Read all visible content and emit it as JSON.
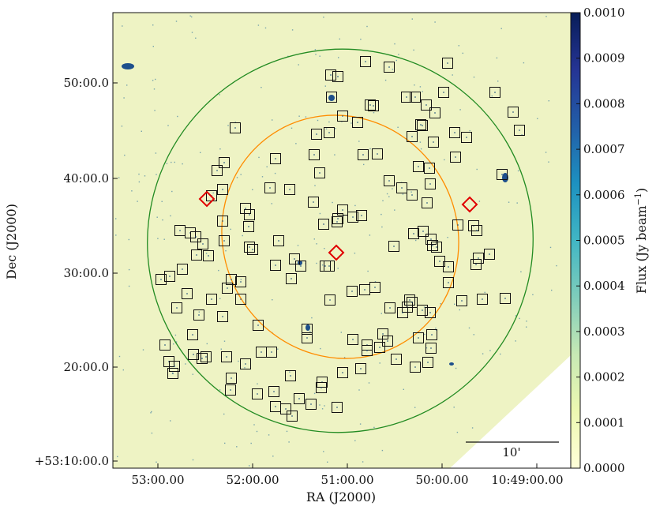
{
  "chart_data": {
    "type": "heatmap",
    "xlabel": "RA (J2000)",
    "ylabel": "Dec (J2000)",
    "x_ticks": [
      "53:00.00",
      "52:00.00",
      "51:00.00",
      "50:00.00",
      "10:49:00.00"
    ],
    "y_ticks": [
      "+53:10:00.0",
      "20:00.0",
      "30:00.0",
      "40:00.0",
      "50:00.0"
    ],
    "colorbar": {
      "label": "Flux (Jy beam",
      "label_exp": "−1",
      "label_close": ")",
      "range": [
        0,
        0.001
      ],
      "ticks": [
        "0.0000",
        "0.0001",
        "0.0002",
        "0.0003",
        "0.0004",
        "0.0005",
        "0.0006",
        "0.0007",
        "0.0008",
        "0.0009",
        "0.0010"
      ],
      "colormap": "YlGnBu",
      "colors": [
        "#ffffd9",
        "#edf8b1",
        "#c7e9b4",
        "#7fcdbb",
        "#41b6c4",
        "#1d91c0",
        "#225ea8",
        "#253494",
        "#081d58"
      ]
    },
    "scalebar_label": "10'",
    "background_color": "#eef3c4",
    "sources_square": [
      [
        463,
        78
      ],
      [
        493,
        85
      ],
      [
        567,
        80
      ],
      [
        419,
        95
      ],
      [
        428,
        97
      ],
      [
        562,
        117
      ],
      [
        627,
        117
      ],
      [
        420,
        123
      ],
      [
        469,
        133
      ],
      [
        473,
        134
      ],
      [
        515,
        123
      ],
      [
        526,
        123
      ],
      [
        540,
        133
      ],
      [
        551,
        143
      ],
      [
        533,
        158
      ],
      [
        535,
        159
      ],
      [
        434,
        147
      ],
      [
        453,
        155
      ],
      [
        298,
        162
      ],
      [
        401,
        170
      ],
      [
        417,
        168
      ],
      [
        576,
        168
      ],
      [
        522,
        173
      ],
      [
        549,
        180
      ],
      [
        591,
        174
      ],
      [
        650,
        142
      ],
      [
        658,
        165
      ],
      [
        349,
        201
      ],
      [
        398,
        196
      ],
      [
        460,
        196
      ],
      [
        478,
        195
      ],
      [
        530,
        211
      ],
      [
        544,
        213
      ],
      [
        577,
        199
      ],
      [
        636,
        221
      ],
      [
        284,
        206
      ],
      [
        275,
        216
      ],
      [
        282,
        240
      ],
      [
        268,
        248
      ],
      [
        342,
        238
      ],
      [
        367,
        240
      ],
      [
        405,
        219
      ],
      [
        397,
        256
      ],
      [
        434,
        266
      ],
      [
        493,
        229
      ],
      [
        509,
        238
      ],
      [
        545,
        233
      ],
      [
        541,
        257
      ],
      [
        522,
        247
      ],
      [
        311,
        264
      ],
      [
        316,
        272
      ],
      [
        428,
        277
      ],
      [
        447,
        275
      ],
      [
        458,
        273
      ],
      [
        427,
        281
      ],
      [
        410,
        284
      ],
      [
        282,
        280
      ],
      [
        228,
        292
      ],
      [
        241,
        295
      ],
      [
        248,
        300
      ],
      [
        315,
        287
      ],
      [
        316,
        313
      ],
      [
        257,
        309
      ],
      [
        284,
        305
      ],
      [
        320,
        316
      ],
      [
        249,
        323
      ],
      [
        264,
        324
      ],
      [
        353,
        305
      ],
      [
        349,
        336
      ],
      [
        373,
        328
      ],
      [
        381,
        337
      ],
      [
        369,
        353
      ],
      [
        417,
        337
      ],
      [
        412,
        337
      ],
      [
        499,
        312
      ],
      [
        524,
        296
      ],
      [
        536,
        293
      ],
      [
        546,
        303
      ],
      [
        548,
        311
      ],
      [
        553,
        313
      ],
      [
        600,
        286
      ],
      [
        604,
        292
      ],
      [
        580,
        285
      ],
      [
        606,
        327
      ],
      [
        620,
        322
      ],
      [
        568,
        338
      ],
      [
        603,
        335
      ],
      [
        204,
        354
      ],
      [
        215,
        350
      ],
      [
        231,
        341
      ],
      [
        237,
        372
      ],
      [
        293,
        354
      ],
      [
        305,
        357
      ],
      [
        288,
        365
      ],
      [
        305,
        379
      ],
      [
        224,
        390
      ],
      [
        252,
        399
      ],
      [
        282,
        401
      ],
      [
        327,
        412
      ],
      [
        268,
        379
      ],
      [
        446,
        369
      ],
      [
        462,
        367
      ],
      [
        475,
        364
      ],
      [
        418,
        380
      ],
      [
        494,
        390
      ],
      [
        516,
        389
      ],
      [
        519,
        380
      ],
      [
        522,
        383
      ],
      [
        535,
        393
      ],
      [
        545,
        396
      ],
      [
        568,
        358
      ],
      [
        585,
        381
      ],
      [
        611,
        379
      ],
      [
        640,
        378
      ],
      [
        557,
        331
      ],
      [
        209,
        437
      ],
      [
        214,
        458
      ],
      [
        221,
        464
      ],
      [
        219,
        473
      ],
      [
        244,
        424
      ],
      [
        245,
        449
      ],
      [
        256,
        454
      ],
      [
        261,
        452
      ],
      [
        287,
        452
      ],
      [
        293,
        479
      ],
      [
        311,
        461
      ],
      [
        331,
        446
      ],
      [
        344,
        446
      ],
      [
        389,
        417
      ],
      [
        389,
        428
      ],
      [
        447,
        430
      ],
      [
        465,
        437
      ],
      [
        465,
        444
      ],
      [
        481,
        440
      ],
      [
        491,
        432
      ],
      [
        485,
        423
      ],
      [
        510,
        396
      ],
      [
        530,
        428
      ],
      [
        547,
        424
      ],
      [
        546,
        441
      ],
      [
        502,
        455
      ],
      [
        526,
        465
      ],
      [
        542,
        459
      ],
      [
        292,
        494
      ],
      [
        326,
        499
      ],
      [
        347,
        496
      ],
      [
        349,
        515
      ],
      [
        362,
        518
      ],
      [
        368,
        476
      ],
      [
        370,
        527
      ],
      [
        379,
        505
      ],
      [
        394,
        512
      ],
      [
        408,
        484
      ],
      [
        407,
        491
      ],
      [
        434,
        472
      ],
      [
        457,
        467
      ],
      [
        427,
        516
      ]
    ],
    "sources_diamond": [
      [
        262,
        252
      ],
      [
        426,
        320
      ],
      [
        595,
        259
      ]
    ],
    "ellipse_outer": {
      "color": "#228b22"
    },
    "ellipse_inner": {
      "color": "#ff8c00"
    }
  }
}
